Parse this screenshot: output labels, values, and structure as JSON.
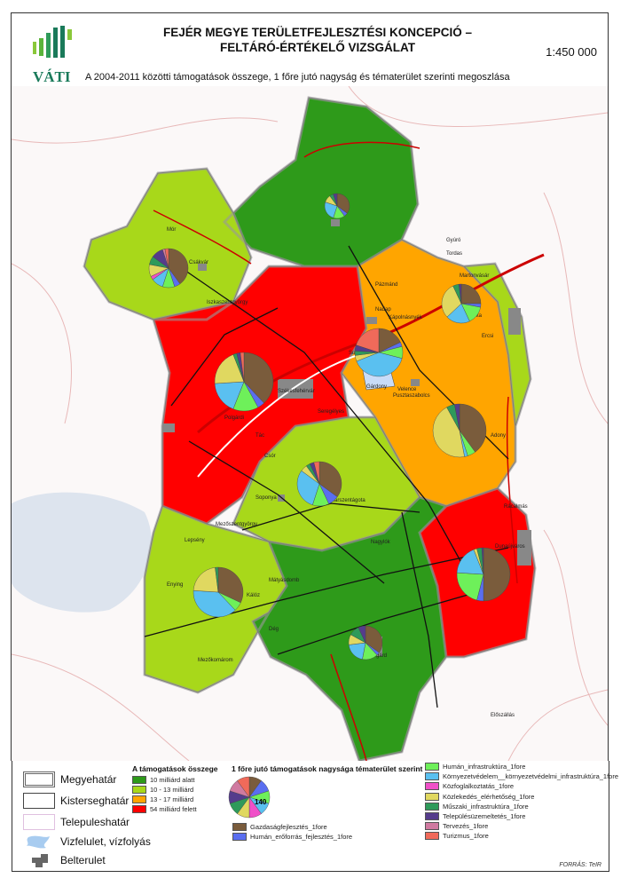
{
  "header": {
    "logo_text": "VÁTI",
    "title_line1": "FEJÉR MEGYE TERÜLETFEJLESZTÉSI KONCEPCIÓ –",
    "title_line2": "FELTÁRÓ-ÉRTÉKELŐ VIZSGÁLAT",
    "scale": "1:450 000",
    "subtitle": "A 2004-2011 közötti támogatások összege, 1 főre jutó nagyság és tématerület szerinti megoszlása"
  },
  "colors": {
    "class1": "#2e9a1a",
    "class2": "#a8d81a",
    "class3": "#ffa500",
    "class4": "#ff0000",
    "water": "#c8dcf8",
    "built": "#888888",
    "Gazdaságfejlesztés": "#7a5c3c",
    "Humán_erőforrás": "#5a6ef0",
    "Humán_infrastruktúra": "#6ef05a",
    "Környezetvédelem": "#5ac0f0",
    "Közfoglalkoztatás": "#f050c8",
    "Közlekedés": "#e0d860",
    "Műszaki": "#2e9a5a",
    "Településüzemeltetés": "#553c8c",
    "Tervezés": "#d07aa0",
    "Turizmus": "#f06a5a"
  },
  "towns": [
    "Mór",
    "Csákvár",
    "Bicske",
    "Martonvásár",
    "Baracska",
    "Ercsi",
    "Pázmánd",
    "Nadap",
    "Kápolnásnyék",
    "Sukoró",
    "Székesfehérvár",
    "Gárdony",
    "Velence",
    "Pusztaszabolcs",
    "Adony",
    "Seregélyes",
    "Polgárdi",
    "Tác",
    "Csór",
    "Aba",
    "Soponya",
    "Sárszentágota",
    "Lepsény",
    "Mezőszentgyörgy",
    "Enying",
    "Kálóz",
    "Mátyásdomb",
    "Dég",
    "Mezőkomárom",
    "Sárbogárd",
    "Nagylók",
    "Dunaújváros",
    "Rácalmás",
    "Előszállás",
    "Iszkaszentgyörgy",
    "Gyúró",
    "Tordas"
  ],
  "legend": {
    "boundaries": [
      {
        "label": "Megyehatár"
      },
      {
        "label": "Kisterseghatár"
      },
      {
        "label": "Telepuleshatár"
      },
      {
        "label": "Vizfelulet, vízfolyás",
        "icon": "water-icon"
      },
      {
        "label": "Belterulet",
        "icon": "built-area-icon"
      }
    ],
    "sum_title": "A támogatások összege",
    "sum_classes": [
      {
        "label": "10 milliárd alatt",
        "color": "#2e9a1a"
      },
      {
        "label": "10 - 13 milliárd",
        "color": "#a8d81a"
      },
      {
        "label": "13 - 17 milliárd",
        "color": "#ffa500"
      },
      {
        "label": "54 milliárd felett",
        "color": "#ff0000"
      }
    ],
    "pie_title": "1 főre jutó támogatások nagysága tématerület szerint",
    "pie_value": "140",
    "themes": [
      {
        "label": "Gazdaságfejlesztés_1fore",
        "color": "#7a5c3c"
      },
      {
        "label": "Humán_erőforrás_fejlesztés_1fore",
        "color": "#5a6ef0"
      },
      {
        "label": "Humán_infrastruktúra_1fore",
        "color": "#6ef05a"
      },
      {
        "label": "Környezetvédelem__környezetvédelmi_infrastruktúra_1fore",
        "color": "#5ac0f0"
      },
      {
        "label": "Közfoglalkoztatás_1fore",
        "color": "#f050c8"
      },
      {
        "label": "Közlekedés_elérhetőség_1fore",
        "color": "#e0d860"
      },
      {
        "label": "Műszaki_infrastruktúra_1fore",
        "color": "#2e9a5a"
      },
      {
        "label": "Településüzemeltetés_1fore",
        "color": "#553c8c"
      },
      {
        "label": "Tervezés_1fore",
        "color": "#d07aa0"
      },
      {
        "label": "Turizmus_1fore",
        "color": "#f06a5a"
      }
    ],
    "source": "FORRÁS: TeIR"
  },
  "pies": [
    {
      "town": "Mór",
      "shares": [
        40,
        5,
        10,
        10,
        3,
        10,
        7,
        10,
        2,
        3
      ]
    },
    {
      "town": "Bicske",
      "shares": [
        35,
        5,
        15,
        25,
        0,
        10,
        5,
        5,
        0,
        0
      ]
    },
    {
      "town": "Martonvásár",
      "shares": [
        25,
        3,
        15,
        20,
        0,
        30,
        5,
        2,
        0,
        0
      ]
    },
    {
      "town": "Székesfehérvár",
      "shares": [
        38,
        4,
        14,
        18,
        0,
        20,
        2,
        2,
        0,
        2
      ]
    },
    {
      "town": "Gárdony",
      "shares": [
        18,
        3,
        8,
        40,
        0,
        4,
        3,
        4,
        0,
        20
      ]
    },
    {
      "town": "Adony",
      "shares": [
        40,
        0,
        5,
        2,
        0,
        45,
        5,
        3,
        0,
        0
      ]
    },
    {
      "town": "Aba",
      "shares": [
        35,
        8,
        12,
        30,
        0,
        5,
        3,
        3,
        0,
        4
      ]
    },
    {
      "town": "Enying",
      "shares": [
        32,
        0,
        6,
        38,
        0,
        22,
        2,
        0,
        0,
        0
      ]
    },
    {
      "town": "Dunaújváros",
      "shares": [
        50,
        4,
        22,
        18,
        0,
        2,
        3,
        1,
        0,
        0
      ]
    },
    {
      "town": "Sárbogárd",
      "shares": [
        35,
        3,
        15,
        20,
        0,
        10,
        10,
        7,
        0,
        0
      ]
    }
  ]
}
